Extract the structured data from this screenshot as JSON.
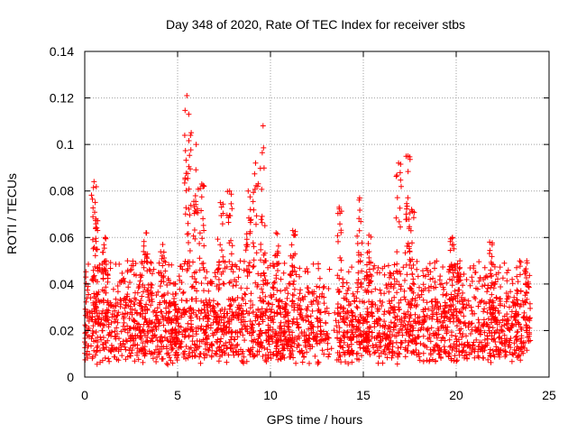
{
  "chart_data": {
    "type": "scatter",
    "title": "Day 348 of 2020, Rate Of TEC Index for receiver stbs",
    "xlabel": "GPS time / hours",
    "ylabel": "ROTI / TECUs",
    "xlim": [
      0,
      25
    ],
    "ylim": [
      0,
      0.14
    ],
    "xticks": [
      0,
      5,
      10,
      15,
      20,
      25
    ],
    "xtick_labels": [
      "0",
      "5",
      "10",
      "15",
      "20",
      "25"
    ],
    "yticks": [
      0,
      0.02,
      0.04,
      0.06,
      0.08,
      0.1,
      0.12,
      0.14
    ],
    "ytick_labels": [
      "0",
      "0.02",
      "0.04",
      "0.06",
      "0.08",
      "0.1",
      "0.12",
      "0.14"
    ],
    "grid": true,
    "marker": "+",
    "color": "#ff0000",
    "x_range_data": [
      0,
      24
    ],
    "base_band": [
      0.008,
      0.032
    ],
    "gap_hours": [
      [
        13.15,
        13.55
      ]
    ],
    "peaks": [
      {
        "x": 0.5,
        "y": 0.084
      },
      {
        "x": 0.6,
        "y": 0.068
      },
      {
        "x": 1.1,
        "y": 0.06
      },
      {
        "x": 3.3,
        "y": 0.062
      },
      {
        "x": 4.2,
        "y": 0.057
      },
      {
        "x": 5.5,
        "y": 0.121
      },
      {
        "x": 5.6,
        "y": 0.113
      },
      {
        "x": 6.0,
        "y": 0.1
      },
      {
        "x": 6.3,
        "y": 0.083
      },
      {
        "x": 7.3,
        "y": 0.075
      },
      {
        "x": 7.8,
        "y": 0.08
      },
      {
        "x": 8.8,
        "y": 0.08
      },
      {
        "x": 9.2,
        "y": 0.092
      },
      {
        "x": 9.6,
        "y": 0.108
      },
      {
        "x": 10.3,
        "y": 0.062
      },
      {
        "x": 11.2,
        "y": 0.063
      },
      {
        "x": 13.7,
        "y": 0.073
      },
      {
        "x": 14.8,
        "y": 0.077
      },
      {
        "x": 15.3,
        "y": 0.061
      },
      {
        "x": 16.9,
        "y": 0.092
      },
      {
        "x": 17.4,
        "y": 0.095
      },
      {
        "x": 17.6,
        "y": 0.072
      },
      {
        "x": 19.8,
        "y": 0.06
      },
      {
        "x": 20.2,
        "y": 0.05
      },
      {
        "x": 21.8,
        "y": 0.058
      },
      {
        "x": 23.8,
        "y": 0.05
      }
    ]
  }
}
